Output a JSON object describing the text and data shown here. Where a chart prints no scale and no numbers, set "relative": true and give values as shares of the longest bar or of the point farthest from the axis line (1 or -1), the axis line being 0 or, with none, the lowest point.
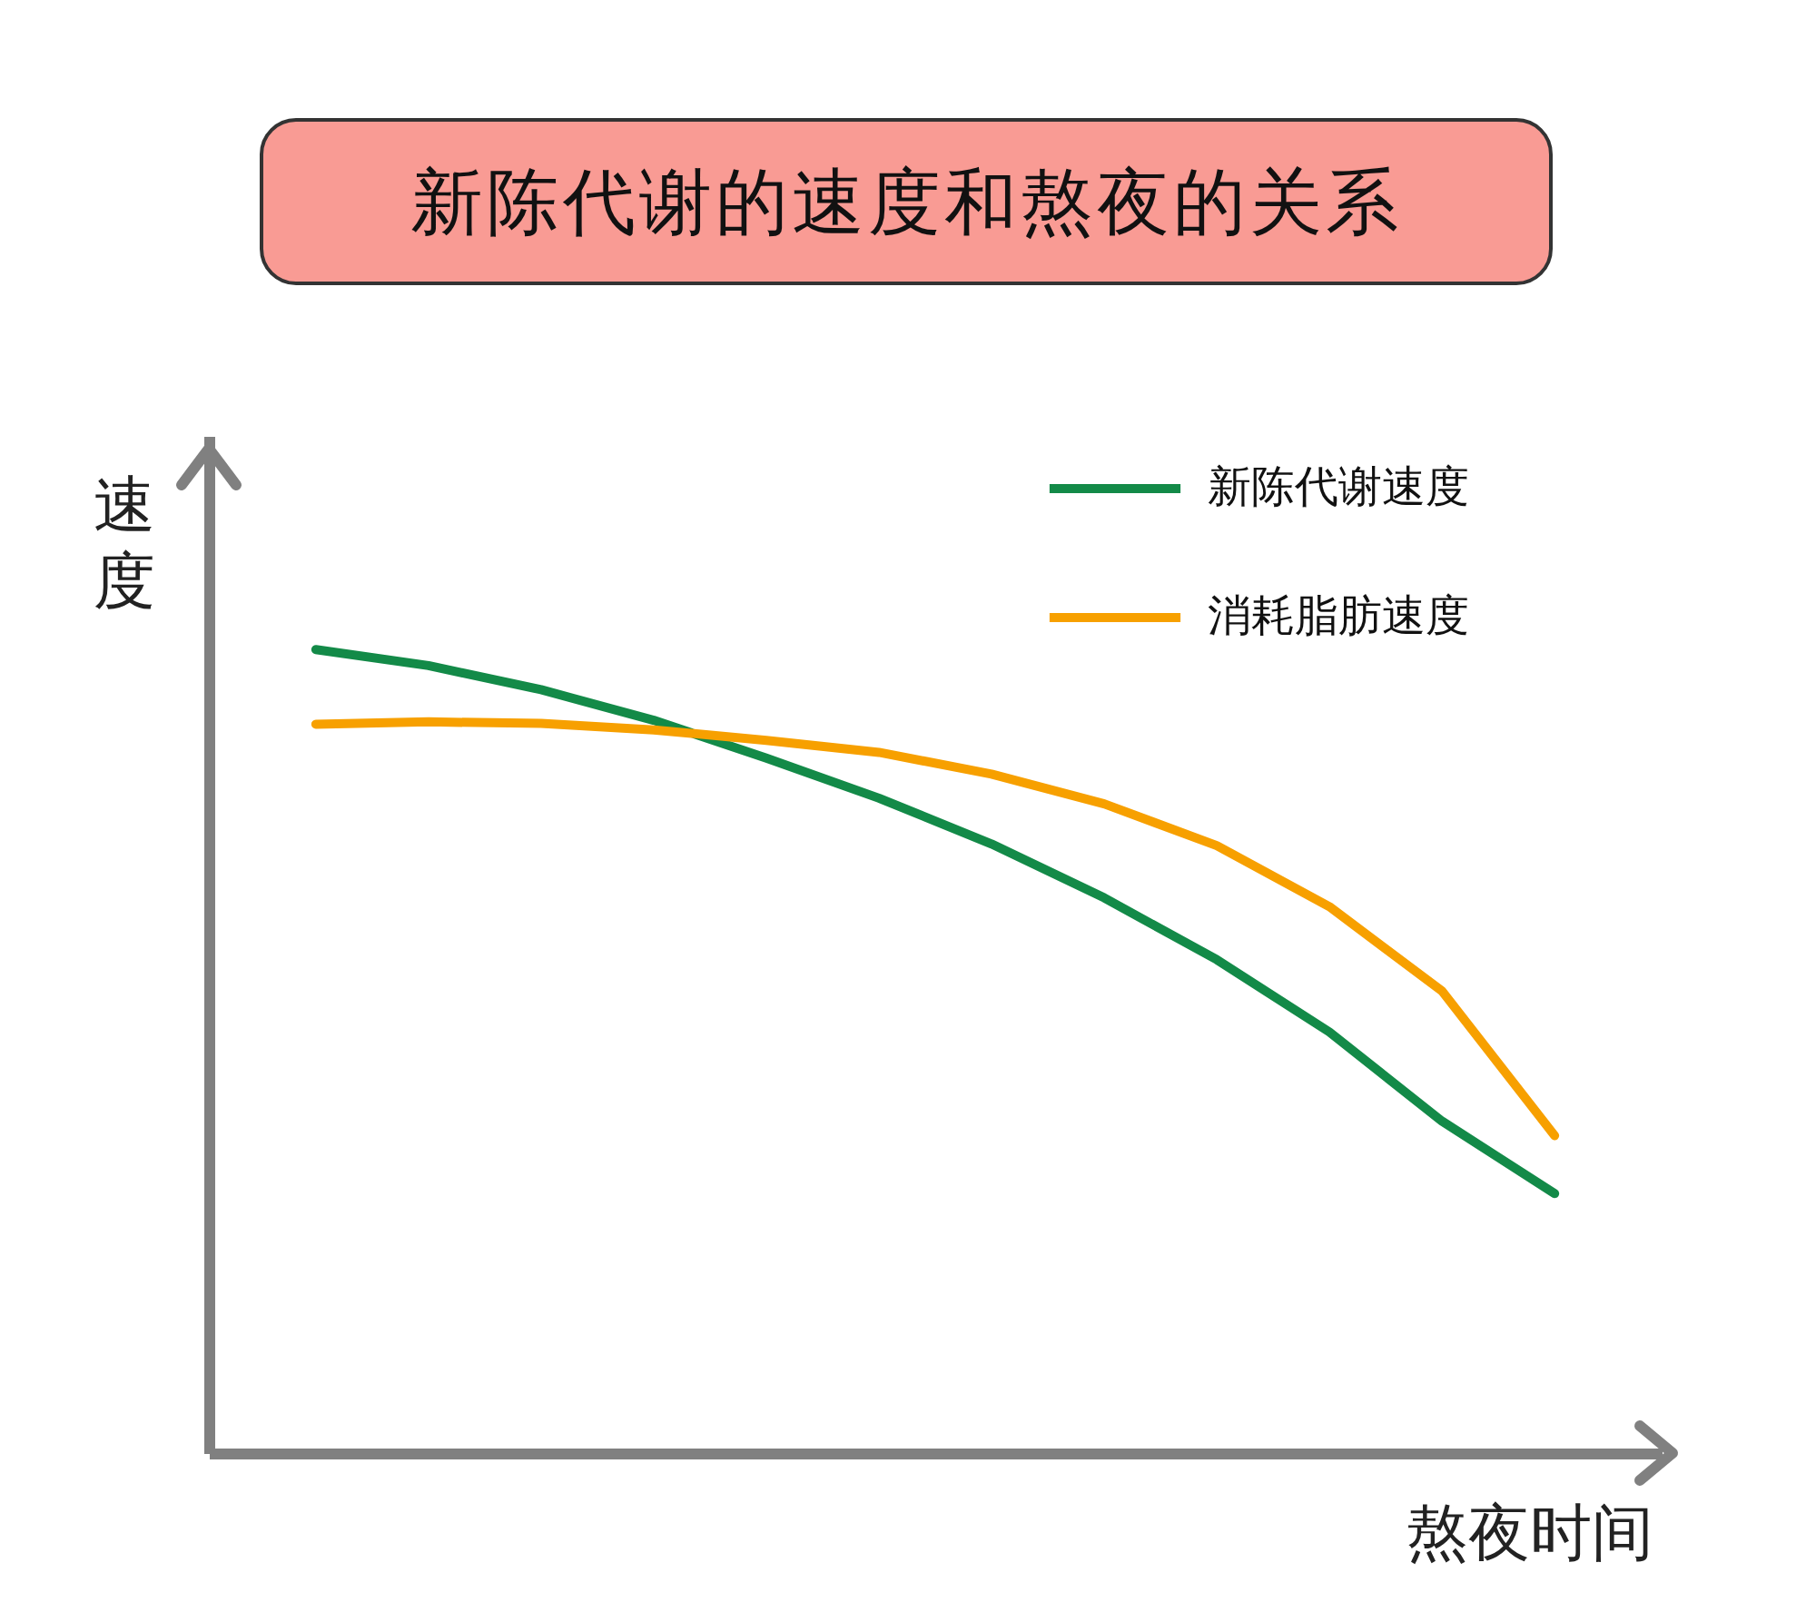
{
  "chart_data": {
    "type": "line",
    "title": "新陈代谢的速度和熬夜的关系",
    "xlabel": "熬夜时间",
    "ylabel": "速度",
    "relative": true,
    "legend": "top right",
    "categories": [
      null,
      null,
      null,
      null,
      null,
      null,
      null,
      null,
      null,
      null,
      null,
      null
    ],
    "series": [
      {
        "name": "新陈代谢速度",
        "color": "#138a48",
        "values": [
          1.0,
          0.98,
          0.95,
          0.912,
          0.865,
          0.815,
          0.758,
          0.691,
          0.614,
          0.524,
          0.413,
          0.323
        ]
      },
      {
        "name": "消耗脂肪速度",
        "color": "#f7a000",
        "values": [
          0.907,
          0.91,
          0.908,
          0.9,
          0.887,
          0.872,
          0.845,
          0.808,
          0.756,
          0.68,
          0.575,
          0.395
        ]
      }
    ]
  }
}
